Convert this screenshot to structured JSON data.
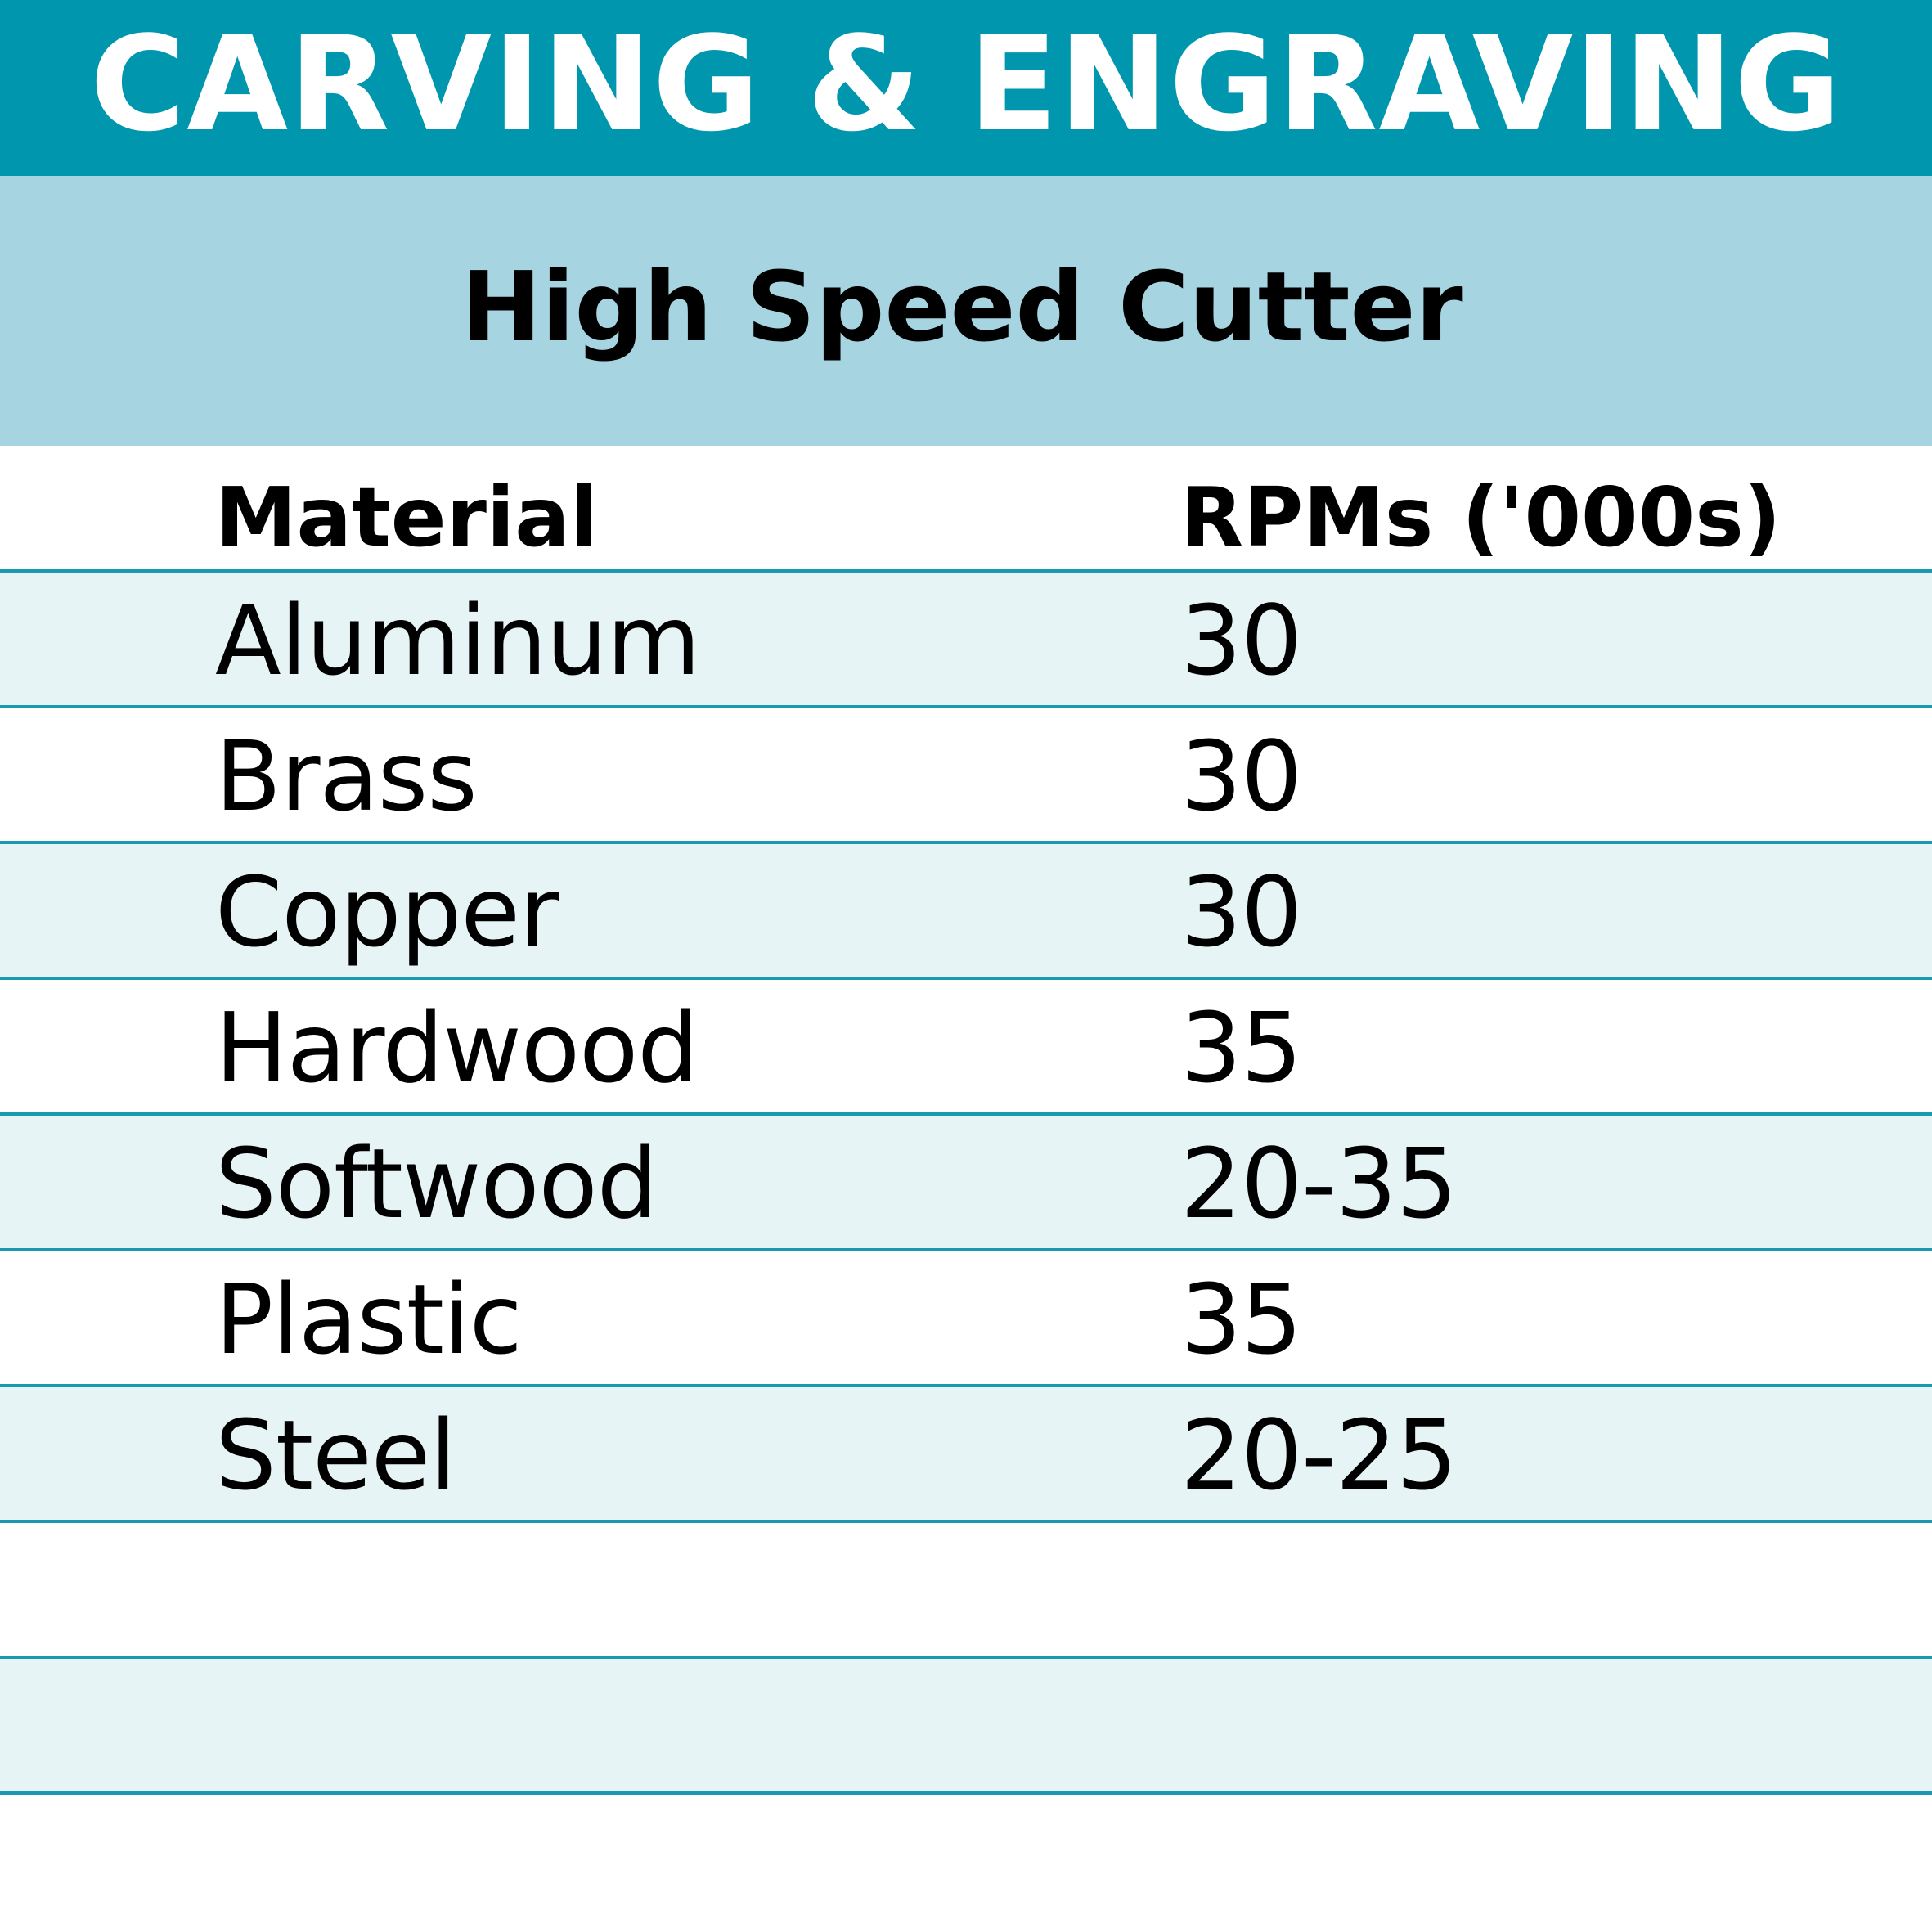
{
  "title": "CARVING & ENGRAVING",
  "subtitle": "High Speed Cutter",
  "table": {
    "headers": {
      "material": "Material",
      "rpm": "RPMs ('000s)"
    },
    "rows": [
      {
        "material": "Aluminum",
        "rpm": "30"
      },
      {
        "material": "Brass",
        "rpm": "30"
      },
      {
        "material": "Copper",
        "rpm": "30"
      },
      {
        "material": "Hardwood",
        "rpm": "35"
      },
      {
        "material": "Softwood",
        "rpm": "20-35"
      },
      {
        "material": "Plastic",
        "rpm": "35"
      },
      {
        "material": "Steel",
        "rpm": "20-25"
      },
      {
        "material": "",
        "rpm": ""
      },
      {
        "material": "",
        "rpm": ""
      }
    ]
  },
  "colors": {
    "title_bar": "#0096ae",
    "subtitle_bar": "#a6d4e1",
    "row_shaded": "#e6f4f6",
    "divider": "#1a9aae"
  }
}
